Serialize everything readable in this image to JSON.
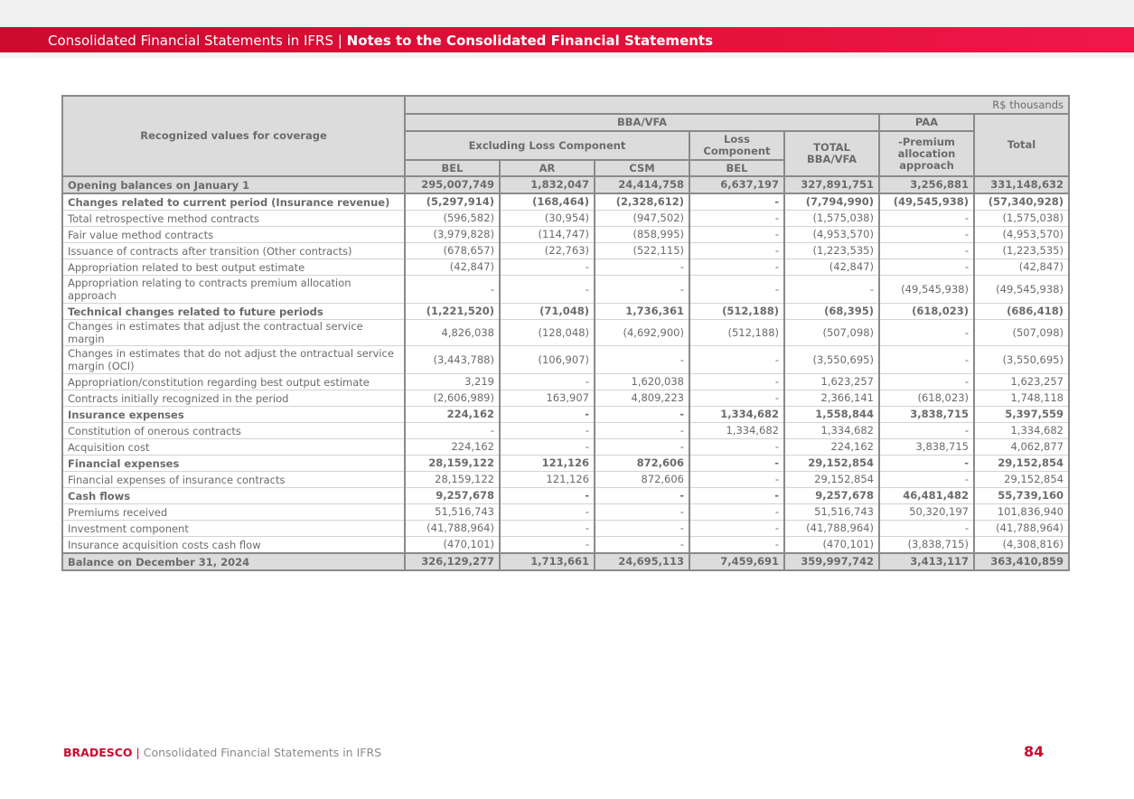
{
  "header": {
    "section": "Consolidated Financial Statements in IFRS",
    "separator": "|",
    "title": "Notes to the Consolidated Financial Statements"
  },
  "table": {
    "unit": "R$ thousands",
    "row_header": "Recognized values for coverage",
    "groups": {
      "bba_vfa": "BBA/VFA",
      "paa": "PAA",
      "excluding_loss": "Excluding Loss Component",
      "loss_component": "Loss Component",
      "total_bba": "TOTAL BBA/VFA",
      "premium_alloc": "-Premium allocation approach",
      "total": "Total"
    },
    "sub_columns": [
      "BEL",
      "AR",
      "CSM",
      "BEL"
    ],
    "rows": [
      {
        "label": "Opening balances on January 1",
        "bold": true,
        "shaded": true,
        "values": [
          "295,007,749",
          "1,832,047",
          "24,414,758",
          "6,637,197",
          "327,891,751",
          "3,256,881",
          "331,148,632"
        ]
      },
      {
        "label": "Changes related to current period (Insurance revenue)",
        "bold": true,
        "values": [
          "(5,297,914)",
          "(168,464)",
          "(2,328,612)",
          "-",
          "(7,794,990)",
          "(49,545,938)",
          "(57,340,928)"
        ]
      },
      {
        "label": "Total retrospective method contracts",
        "values": [
          "(596,582)",
          "(30,954)",
          "(947,502)",
          "-",
          "(1,575,038)",
          "-",
          "(1,575,038)"
        ]
      },
      {
        "label": "Fair value method contracts",
        "values": [
          "(3,979,828)",
          "(114,747)",
          "(858,995)",
          "-",
          "(4,953,570)",
          "-",
          "(4,953,570)"
        ]
      },
      {
        "label": "Issuance of contracts after transition (Other contracts)",
        "values": [
          "(678,657)",
          "(22,763)",
          "(522,115)",
          "-",
          "(1,223,535)",
          "-",
          "(1,223,535)"
        ]
      },
      {
        "label": "Appropriation related to best output estimate",
        "values": [
          "(42,847)",
          "-",
          "-",
          "-",
          "(42,847)",
          "-",
          "(42,847)"
        ]
      },
      {
        "label": "Appropriation relating to contracts premium allocation approach",
        "tall": true,
        "values": [
          "-",
          "-",
          "-",
          "-",
          "-",
          "(49,545,938)",
          "(49,545,938)"
        ]
      },
      {
        "label": "Technical changes related to future periods",
        "bold": true,
        "values": [
          "(1,221,520)",
          "(71,048)",
          "1,736,361",
          "(512,188)",
          "(68,395)",
          "(618,023)",
          "(686,418)"
        ]
      },
      {
        "label": "Changes in estimates that adjust the contractual service margin",
        "values": [
          "4,826,038",
          "(128,048)",
          "(4,692,900)",
          "(512,188)",
          "(507,098)",
          "-",
          "(507,098)"
        ]
      },
      {
        "label": " Changes in estimates that do not adjust the ontractual service margin (OCI)",
        "tall": true,
        "values": [
          "(3,443,788)",
          "(106,907)",
          "-",
          "-",
          "(3,550,695)",
          "-",
          "(3,550,695)"
        ]
      },
      {
        "label": "Appropriation/constitution regarding best output estimate",
        "values": [
          "3,219",
          "-",
          "1,620,038",
          "-",
          "1,623,257",
          "-",
          "1,623,257"
        ]
      },
      {
        "label": "Contracts initially recognized in the period",
        "values": [
          "(2,606,989)",
          "163,907",
          "4,809,223",
          "-",
          "2,366,141",
          "(618,023)",
          "1,748,118"
        ]
      },
      {
        "label": "Insurance expenses",
        "bold": true,
        "values": [
          "224,162",
          "-",
          "-",
          "1,334,682",
          "1,558,844",
          "3,838,715",
          "5,397,559"
        ]
      },
      {
        "label": "Constitution of onerous contracts",
        "values": [
          "-",
          "-",
          "-",
          "1,334,682",
          "1,334,682",
          "-",
          "1,334,682"
        ]
      },
      {
        "label": "Acquisition cost",
        "values": [
          "224,162",
          "-",
          "-",
          "-",
          "224,162",
          "3,838,715",
          "4,062,877"
        ]
      },
      {
        "label": "Financial expenses",
        "bold": true,
        "values": [
          "28,159,122",
          "121,126",
          "872,606",
          "-",
          "29,152,854",
          "-",
          "29,152,854"
        ]
      },
      {
        "label": "Financial expenses of insurance contracts",
        "values": [
          "28,159,122",
          "121,126",
          "872,606",
          "-",
          "29,152,854",
          "-",
          "29,152,854"
        ]
      },
      {
        "label": "Cash flows",
        "bold": true,
        "values": [
          "9,257,678",
          "-",
          "-",
          "-",
          "9,257,678",
          "46,481,482",
          "55,739,160"
        ]
      },
      {
        "label": "Premiums received",
        "values": [
          "51,516,743",
          "-",
          "-",
          "-",
          "51,516,743",
          "50,320,197",
          "101,836,940"
        ]
      },
      {
        "label": "Investment component",
        "values": [
          "(41,788,964)",
          "-",
          "-",
          "-",
          "(41,788,964)",
          "-",
          "(41,788,964)"
        ]
      },
      {
        "label": "Insurance acquisition costs cash flow",
        "values": [
          "(470,101)",
          "-",
          "-",
          "-",
          "(470,101)",
          "(3,838,715)",
          "(4,308,816)"
        ]
      },
      {
        "label": "Balance on December 31, 2024",
        "bold": true,
        "shaded": true,
        "values": [
          "326,129,277",
          "1,713,661",
          "24,695,113",
          "7,459,691",
          "359,997,742",
          "3,413,117",
          "363,410,859"
        ]
      }
    ]
  },
  "footer": {
    "brand": "BRADESCO",
    "separator": "|",
    "text": "Consolidated Financial Statements in IFRS",
    "page": "84"
  },
  "colors": {
    "brand_red": "#cc092f",
    "header_gray": "#dcdcdc",
    "text_gray": "#6b6b6b"
  }
}
